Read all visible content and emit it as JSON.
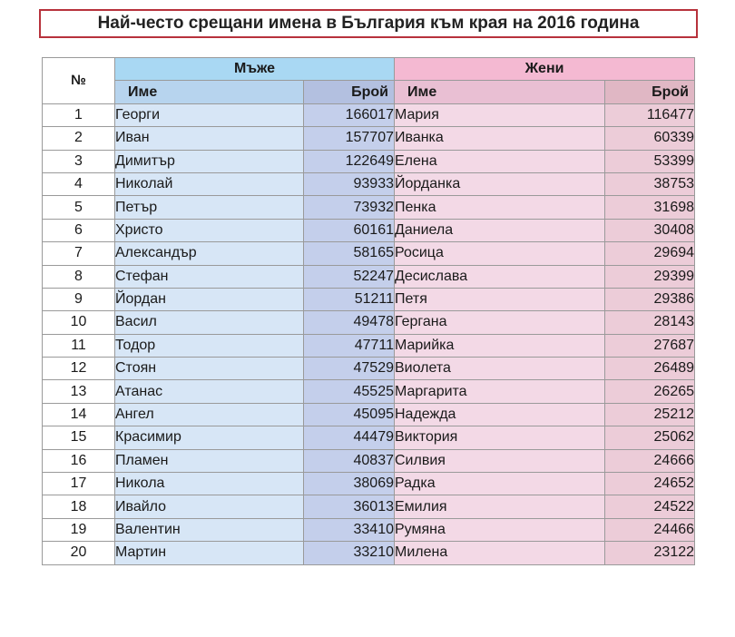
{
  "title": "Най-често срещани имена в България към края на 2016 година",
  "table": {
    "num_header": "№",
    "men_header": "Мъже",
    "women_header": "Жени",
    "name_header": "Име",
    "count_header": "Брой",
    "rows": [
      {
        "rank": "1",
        "male_name": "Георги",
        "male_count": "166017",
        "female_name": "Мария",
        "female_count": "116477"
      },
      {
        "rank": "2",
        "male_name": "Иван",
        "male_count": "157707",
        "female_name": "Иванка",
        "female_count": "60339"
      },
      {
        "rank": "3",
        "male_name": "Димитър",
        "male_count": "122649",
        "female_name": "Елена",
        "female_count": "53399"
      },
      {
        "rank": "4",
        "male_name": "Николай",
        "male_count": "93933",
        "female_name": "Йорданка",
        "female_count": "38753"
      },
      {
        "rank": "5",
        "male_name": "Петър",
        "male_count": "73932",
        "female_name": "Пенка",
        "female_count": "31698"
      },
      {
        "rank": "6",
        "male_name": "Христо",
        "male_count": "60161",
        "female_name": "Даниела",
        "female_count": "30408"
      },
      {
        "rank": "7",
        "male_name": "Александър",
        "male_count": "58165",
        "female_name": "Росица",
        "female_count": "29694"
      },
      {
        "rank": "8",
        "male_name": "Стефан",
        "male_count": "52247",
        "female_name": "Десислава",
        "female_count": "29399"
      },
      {
        "rank": "9",
        "male_name": "Йордан",
        "male_count": "51211",
        "female_name": "Петя",
        "female_count": "29386"
      },
      {
        "rank": "10",
        "male_name": "Васил",
        "male_count": "49478",
        "female_name": "Гергана",
        "female_count": "28143"
      },
      {
        "rank": "11",
        "male_name": "Тодор",
        "male_count": "47711",
        "female_name": "Марийка",
        "female_count": "27687"
      },
      {
        "rank": "12",
        "male_name": "Стоян",
        "male_count": "47529",
        "female_name": "Виолета",
        "female_count": "26489"
      },
      {
        "rank": "13",
        "male_name": "Атанас",
        "male_count": "45525",
        "female_name": "Маргарита",
        "female_count": "26265"
      },
      {
        "rank": "14",
        "male_name": "Ангел",
        "male_count": "45095",
        "female_name": "Надежда",
        "female_count": "25212"
      },
      {
        "rank": "15",
        "male_name": "Красимир",
        "male_count": "44479",
        "female_name": "Виктория",
        "female_count": "25062"
      },
      {
        "rank": "16",
        "male_name": "Пламен",
        "male_count": "40837",
        "female_name": "Силвия",
        "female_count": "24666"
      },
      {
        "rank": "17",
        "male_name": "Никола",
        "male_count": "38069",
        "female_name": "Радка",
        "female_count": "24652"
      },
      {
        "rank": "18",
        "male_name": "Ивайло",
        "male_count": "36013",
        "female_name": "Емилия",
        "female_count": "24522"
      },
      {
        "rank": "19",
        "male_name": "Валентин",
        "male_count": "33410",
        "female_name": "Румяна",
        "female_count": "24466"
      },
      {
        "rank": "20",
        "male_name": "Мартин",
        "male_count": "33210",
        "female_name": "Милена",
        "female_count": "23122"
      }
    ]
  },
  "colors": {
    "title_border": "#b7323c",
    "men_header": "#a9d8f3",
    "women_header": "#f4b9d2",
    "men_name_cell": "#d7e6f6",
    "men_count_cell": "#c4cfeb",
    "women_name_cell": "#f3d9e6",
    "women_count_cell": "#ecccd8"
  }
}
